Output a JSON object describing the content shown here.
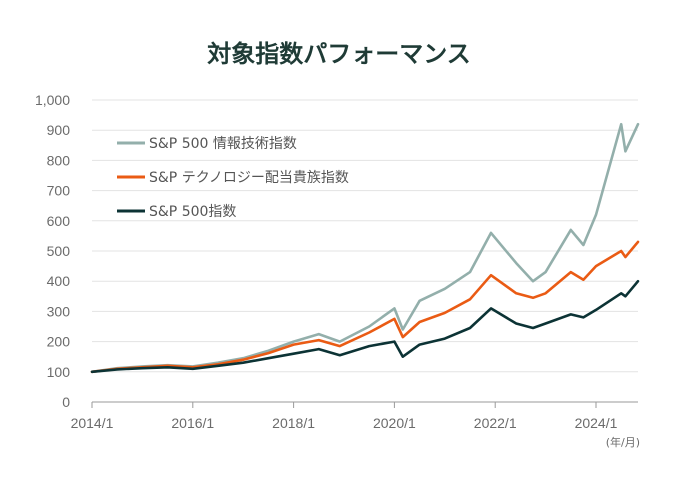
{
  "chart_data": {
    "type": "line",
    "title": "対象指数パフォーマンス",
    "xlabel": "",
    "ylabel": "",
    "x_unit_label": "(年/月)",
    "ylim": [
      0,
      1000
    ],
    "xlim": [
      "2014/1",
      "2024/11"
    ],
    "y_ticks": [
      "0",
      "100",
      "200",
      "300",
      "400",
      "500",
      "600",
      "700",
      "800",
      "900",
      "1,000"
    ],
    "x_ticks": [
      "2014/1",
      "2016/1",
      "2018/1",
      "2020/1",
      "2022/1",
      "2024/1"
    ],
    "grid": true,
    "legend": "top-left",
    "x": [
      "2014/1",
      "2014/7",
      "2015/1",
      "2015/7",
      "2016/1",
      "2016/7",
      "2017/1",
      "2017/7",
      "2018/1",
      "2018/7",
      "2018/12",
      "2019/7",
      "2020/1",
      "2020/3",
      "2020/7",
      "2021/1",
      "2021/7",
      "2021/12",
      "2022/6",
      "2022/10",
      "2023/1",
      "2023/7",
      "2023/10",
      "2024/1",
      "2024/7",
      "2024/8",
      "2024/11"
    ],
    "series": [
      {
        "name": "S&P 500 情報技術指数",
        "color": "#93afab",
        "values": [
          100,
          112,
          118,
          122,
          118,
          130,
          145,
          170,
          200,
          225,
          200,
          250,
          310,
          240,
          335,
          375,
          430,
          560,
          460,
          400,
          430,
          570,
          520,
          620,
          920,
          830,
          920
        ]
      },
      {
        "name": "S&P テクノロジー配当貴族指数",
        "color": "#ea5b14",
        "values": [
          100,
          110,
          115,
          120,
          115,
          125,
          140,
          162,
          190,
          205,
          185,
          230,
          275,
          215,
          265,
          295,
          340,
          420,
          360,
          345,
          360,
          430,
          405,
          450,
          500,
          480,
          530
        ]
      },
      {
        "name": "S&P 500指数",
        "color": "#0c3335",
        "values": [
          100,
          108,
          112,
          115,
          110,
          120,
          130,
          145,
          160,
          175,
          155,
          185,
          200,
          150,
          190,
          210,
          245,
          310,
          260,
          245,
          260,
          290,
          280,
          305,
          360,
          350,
          400
        ]
      }
    ]
  }
}
